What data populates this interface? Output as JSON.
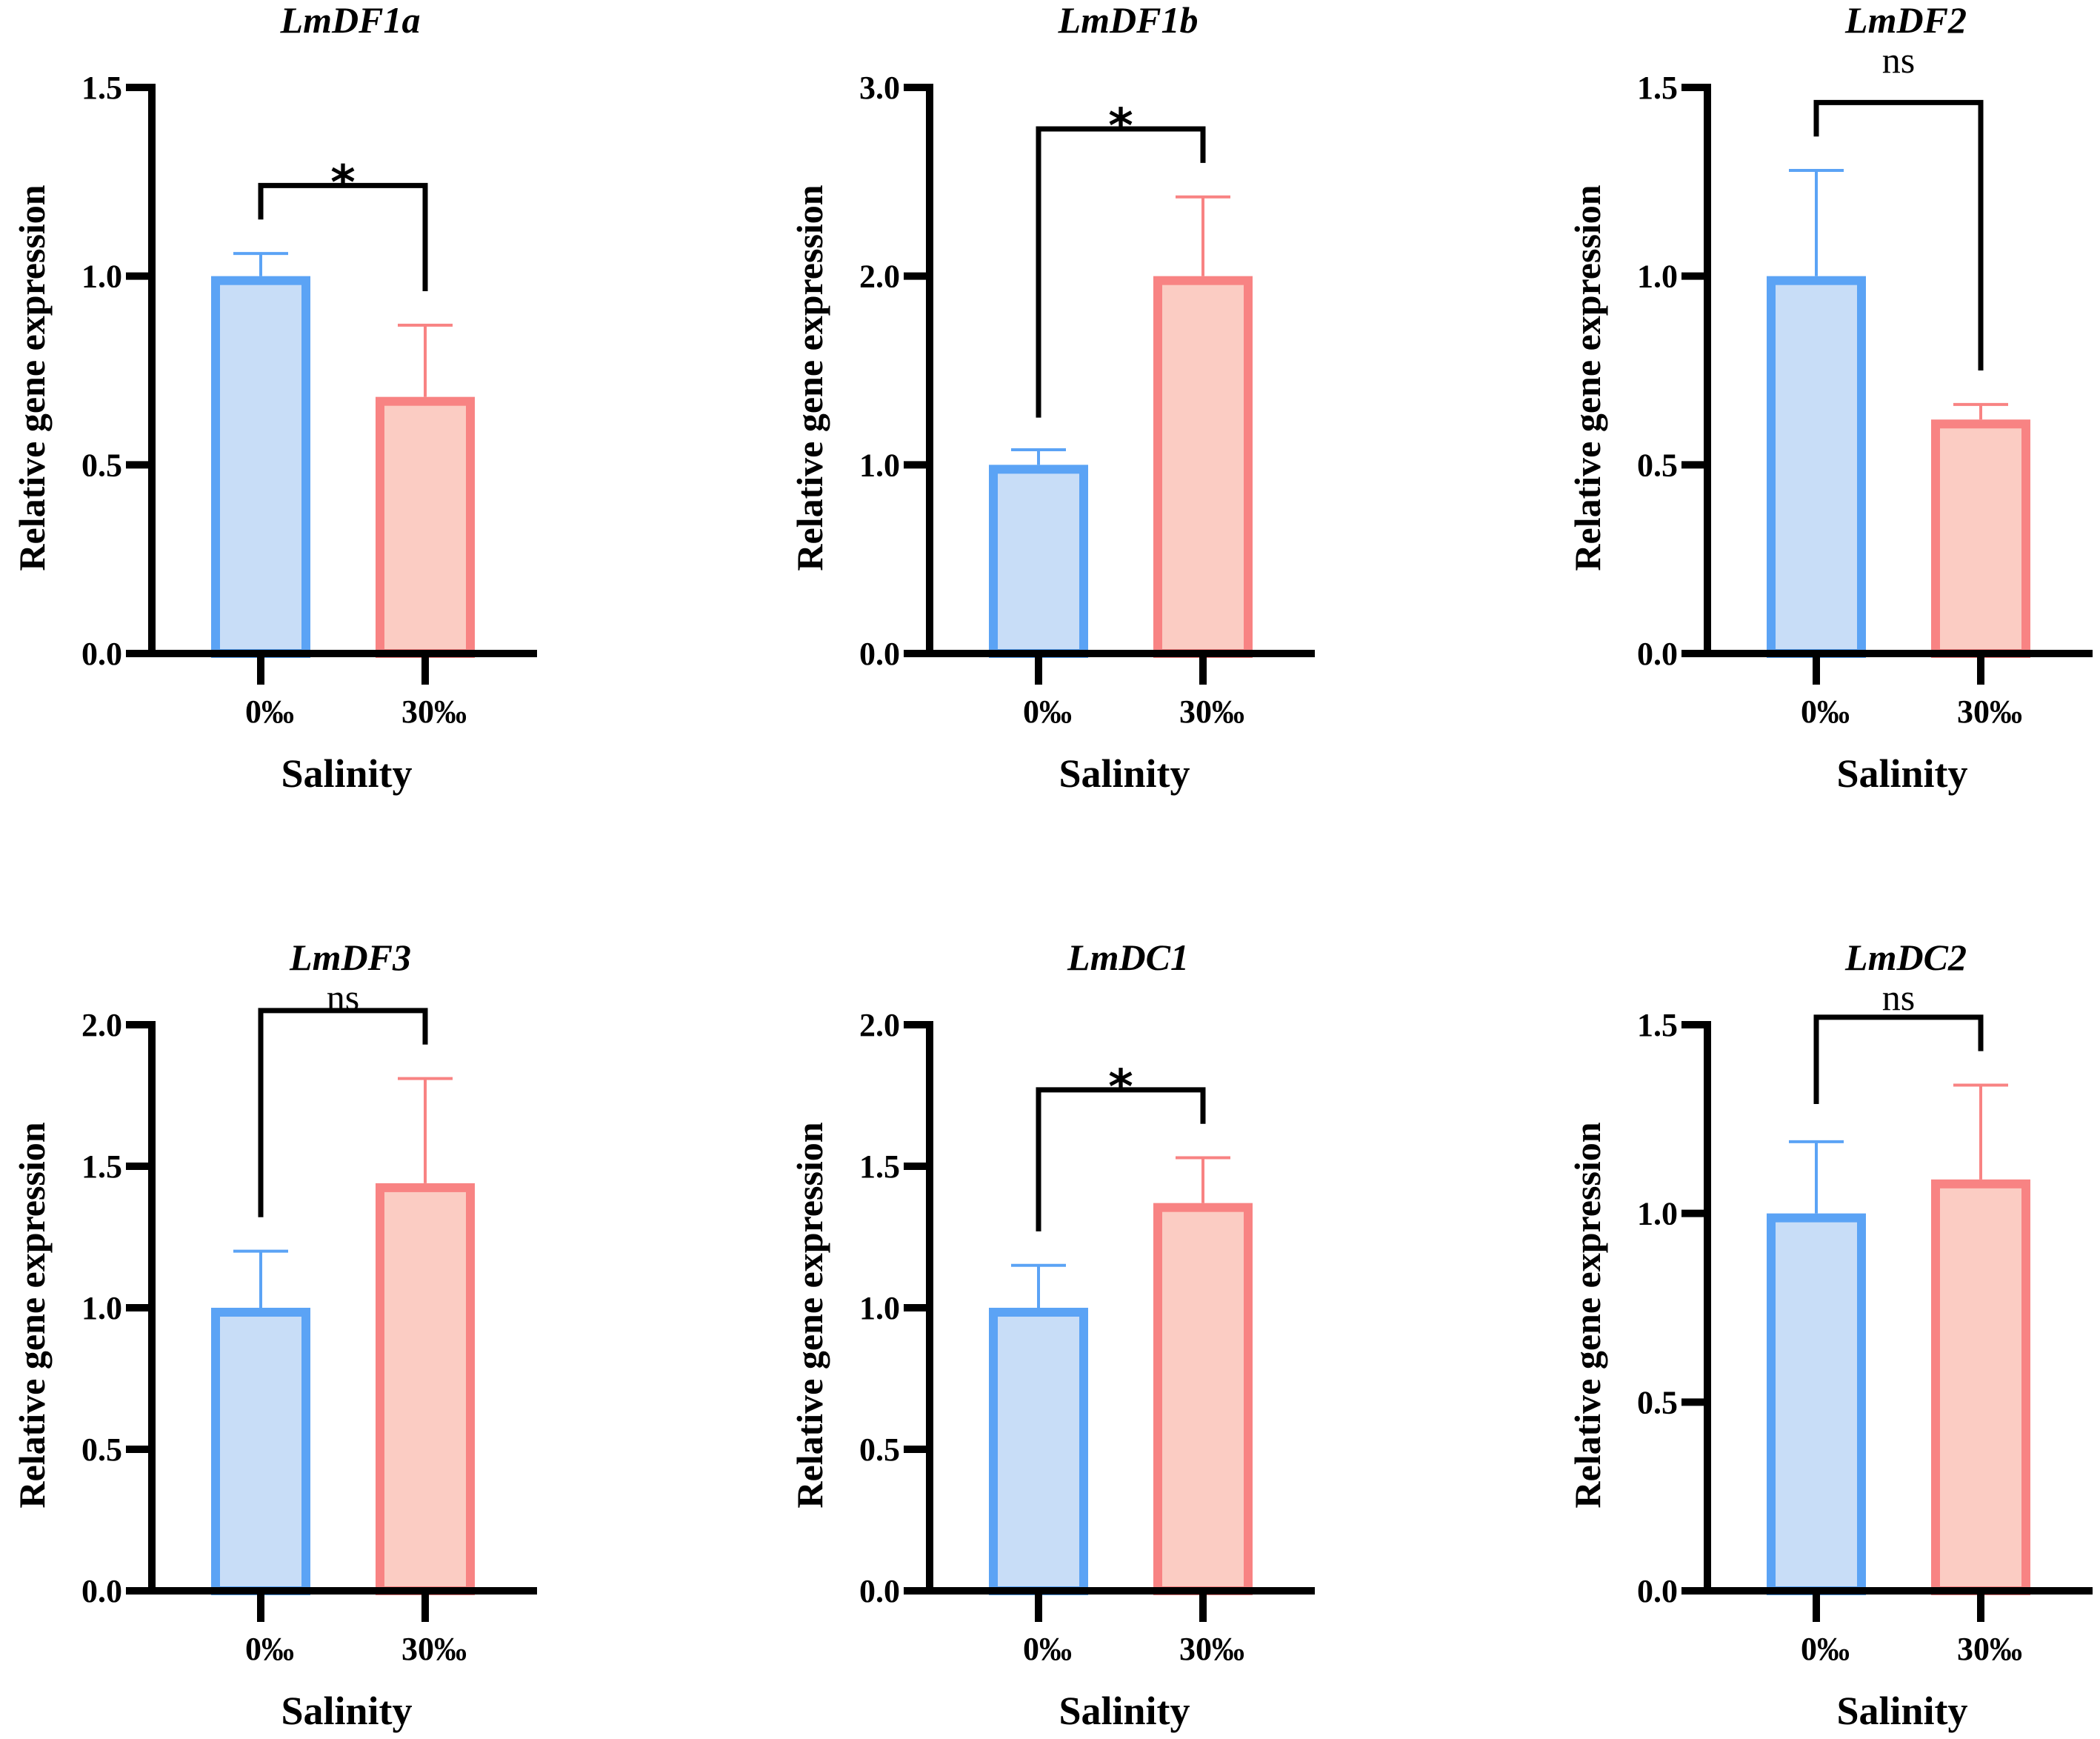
{
  "chart_data": [
    {
      "type": "bar",
      "title": "LmDF1a",
      "xlabel": "Salinity",
      "ylabel": "Relative gene expression",
      "categories": [
        "0‰",
        "30‰"
      ],
      "values": [
        1.0,
        0.68
      ],
      "error_upper": [
        1.06,
        0.87
      ],
      "ylim": [
        0,
        1.5
      ],
      "yticks": [
        "0.0",
        "0.5",
        "1.0",
        "1.5"
      ],
      "ytick_values": [
        0,
        0.5,
        1.0,
        1.5
      ],
      "significance": "*",
      "bracket_left_y": 1.15,
      "bracket_right_y": 0.96,
      "bracket_top_y": 1.24
    },
    {
      "type": "bar",
      "title": "LmDF1b",
      "xlabel": "Salinity",
      "ylabel": "Relative gene expression",
      "categories": [
        "0‰",
        "30‰"
      ],
      "values": [
        1.0,
        2.0
      ],
      "error_upper": [
        1.08,
        2.42
      ],
      "ylim": [
        0,
        3.0
      ],
      "yticks": [
        "0.0",
        "1.0",
        "2.0",
        "3.0"
      ],
      "ytick_values": [
        0,
        1.0,
        2.0,
        3.0
      ],
      "significance": "*",
      "bracket_left_y": 1.25,
      "bracket_right_y": 2.6,
      "bracket_top_y": 2.78
    },
    {
      "type": "bar",
      "title": "LmDF2",
      "xlabel": "Salinity",
      "ylabel": "Relative gene expression",
      "categories": [
        "0‰",
        "30‰"
      ],
      "values": [
        1.0,
        0.62
      ],
      "error_upper": [
        1.28,
        0.66
      ],
      "ylim": [
        0,
        1.5
      ],
      "yticks": [
        "0.0",
        "0.5",
        "1.0",
        "1.5"
      ],
      "ytick_values": [
        0,
        0.5,
        1.0,
        1.5
      ],
      "significance": "ns",
      "bracket_left_y": 1.37,
      "bracket_right_y": 0.75,
      "bracket_top_y": 1.46
    },
    {
      "type": "bar",
      "title": "LmDF3",
      "xlabel": "Salinity",
      "ylabel": "Relative gene expression",
      "categories": [
        "0‰",
        "30‰"
      ],
      "values": [
        1.0,
        1.44
      ],
      "error_upper": [
        1.2,
        1.81
      ],
      "ylim": [
        0,
        2.0
      ],
      "yticks": [
        "0.0",
        "0.5",
        "1.0",
        "1.5",
        "2.0"
      ],
      "ytick_values": [
        0,
        0.5,
        1.0,
        1.5,
        2.0
      ],
      "significance": "ns",
      "bracket_left_y": 1.32,
      "bracket_right_y": 1.93,
      "bracket_top_y": 2.05
    },
    {
      "type": "bar",
      "title": "LmDC1",
      "xlabel": "Salinity",
      "ylabel": "Relative gene expression",
      "categories": [
        "0‰",
        "30‰"
      ],
      "values": [
        1.0,
        1.37
      ],
      "error_upper": [
        1.15,
        1.53
      ],
      "ylim": [
        0,
        2.0
      ],
      "yticks": [
        "0.0",
        "0.5",
        "1.0",
        "1.5",
        "2.0"
      ],
      "ytick_values": [
        0,
        0.5,
        1.0,
        1.5,
        2.0
      ],
      "significance": "*",
      "bracket_left_y": 1.27,
      "bracket_right_y": 1.65,
      "bracket_top_y": 1.77
    },
    {
      "type": "bar",
      "title": "LmDC2",
      "xlabel": "Salinity",
      "ylabel": "Relative gene expression",
      "categories": [
        "0‰",
        "30‰"
      ],
      "values": [
        1.0,
        1.09
      ],
      "error_upper": [
        1.19,
        1.34
      ],
      "ylim": [
        0,
        1.5
      ],
      "yticks": [
        "0.0",
        "0.5",
        "1.0",
        "1.5"
      ],
      "ytick_values": [
        0,
        0.5,
        1.0,
        1.5
      ],
      "significance": "ns",
      "bracket_left_y": 1.29,
      "bracket_right_y": 1.43,
      "bracket_top_y": 1.52
    }
  ],
  "colors": {
    "series_0_stroke": "#5BA3F5",
    "series_0_fill": "#C8DDF7",
    "series_1_stroke": "#F88383",
    "series_1_fill": "#FBCCC3",
    "axis": "#000000"
  }
}
